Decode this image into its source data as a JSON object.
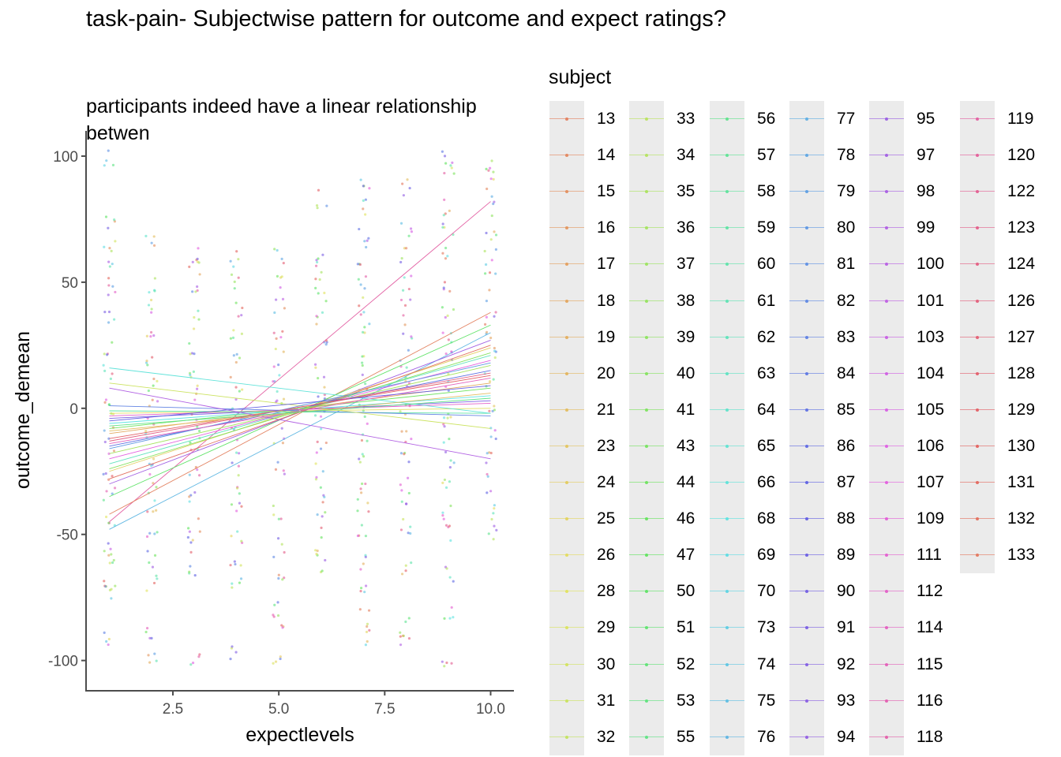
{
  "chart_data": {
    "type": "scatter",
    "title": "task-pain- Subjectwise pattern for outcome and expect ratings?",
    "subtitle": "participants indeed have a linear relationship betwen",
    "xlabel": "expectlevels",
    "ylabel": "outcome_demean",
    "xlim": [
      0.45,
      10.55
    ],
    "ylim": [
      -112,
      110
    ],
    "x_ticks": [
      2.5,
      5.0,
      7.5,
      10.0
    ],
    "x_tick_labels": [
      "2.5",
      "5.0",
      "7.5",
      "10.0"
    ],
    "y_ticks": [
      100,
      50,
      0,
      -50,
      -100
    ],
    "y_tick_labels": [
      "100",
      "50",
      "0",
      "-50",
      "-100"
    ],
    "grid": false,
    "legend_title": "subject",
    "legend_position": "right",
    "overlay": "per-subject linear fit lines over jittered points",
    "subjects": [
      "13",
      "14",
      "15",
      "16",
      "17",
      "18",
      "19",
      "20",
      "21",
      "23",
      "24",
      "25",
      "26",
      "28",
      "29",
      "30",
      "31",
      "32",
      "33",
      "34",
      "35",
      "36",
      "37",
      "38",
      "39",
      "40",
      "41",
      "43",
      "44",
      "46",
      "47",
      "50",
      "51",
      "52",
      "53",
      "55",
      "56",
      "57",
      "58",
      "59",
      "60",
      "61",
      "62",
      "63",
      "64",
      "65",
      "66",
      "68",
      "69",
      "70",
      "73",
      "74",
      "75",
      "76",
      "77",
      "78",
      "79",
      "80",
      "81",
      "82",
      "83",
      "84",
      "85",
      "86",
      "87",
      "88",
      "89",
      "90",
      "91",
      "92",
      "93",
      "94",
      "95",
      "97",
      "98",
      "99",
      "100",
      "101",
      "103",
      "104",
      "105",
      "106",
      "107",
      "109",
      "111",
      "112",
      "114",
      "115",
      "116",
      "118",
      "119",
      "120",
      "122",
      "123",
      "124",
      "126",
      "127",
      "128",
      "129",
      "130",
      "131",
      "132",
      "133"
    ],
    "x_levels": [
      1,
      2,
      3,
      4,
      5,
      6,
      7,
      8,
      9,
      10
    ],
    "y_points_by_level": [
      [
        -92,
        -72,
        -70,
        -60,
        -55,
        -45,
        -35,
        -25,
        -15,
        -5,
        5,
        15,
        25,
        35,
        45,
        55,
        65,
        74,
        99
      ],
      [
        -97,
        -89,
        -70,
        -60,
        -50,
        -40,
        -30,
        -20,
        -10,
        0,
        10,
        20,
        30,
        40,
        50,
        66
      ],
      [
        -100,
        -65,
        -55,
        -45,
        -35,
        -25,
        -15,
        -5,
        5,
        15,
        25,
        35,
        45,
        55,
        61
      ],
      [
        -97,
        -68,
        -60,
        -50,
        -40,
        -30,
        -20,
        -10,
        0,
        10,
        20,
        30,
        40,
        50,
        59
      ],
      [
        -102,
        -86,
        -80,
        -70,
        -55,
        -40,
        -25,
        -10,
        0,
        10,
        20,
        30,
        40,
        50,
        60
      ],
      [
        -61,
        -55,
        -45,
        -35,
        -25,
        -15,
        -5,
        5,
        15,
        25,
        35,
        45,
        55,
        60,
        83
      ],
      [
        -90,
        -83,
        -70,
        -60,
        -50,
        -40,
        -30,
        -20,
        -10,
        0,
        10,
        20,
        30,
        40,
        50,
        60,
        70,
        80,
        91
      ],
      [
        -90,
        -87,
        -65,
        -50,
        -40,
        -30,
        -20,
        -10,
        0,
        10,
        20,
        30,
        40,
        50,
        60,
        70,
        88
      ],
      [
        -99,
        -80,
        -65,
        -50,
        -40,
        -30,
        -20,
        -10,
        0,
        10,
        20,
        30,
        40,
        50,
        60,
        70,
        79,
        97,
        101
      ],
      [
        -50,
        -40,
        -30,
        -20,
        -10,
        0,
        10,
        20,
        30,
        40,
        50,
        60,
        70,
        80,
        91,
        95
      ]
    ],
    "fit_lines": [
      {
        "subject": "119",
        "x": [
          1,
          10
        ],
        "y": [
          -45,
          82
        ]
      },
      {
        "subject": "13",
        "x": [
          1,
          10
        ],
        "y": [
          -42,
          38
        ]
      },
      {
        "subject": "76",
        "x": [
          1,
          10
        ],
        "y": [
          -48,
          30
        ]
      },
      {
        "subject": "50",
        "x": [
          1,
          10
        ],
        "y": [
          -35,
          33
        ]
      },
      {
        "subject": "97",
        "x": [
          1,
          10
        ],
        "y": [
          -30,
          27
        ]
      },
      {
        "subject": "24",
        "x": [
          1,
          10
        ],
        "y": [
          -25,
          24
        ]
      },
      {
        "subject": "62",
        "x": [
          1,
          10
        ],
        "y": [
          -22,
          21
        ]
      },
      {
        "subject": "107",
        "x": [
          1,
          10
        ],
        "y": [
          -20,
          19
        ]
      },
      {
        "subject": "36",
        "x": [
          1,
          10
        ],
        "y": [
          -18,
          17
        ]
      },
      {
        "subject": "85",
        "x": [
          1,
          10
        ],
        "y": [
          -15,
          15
        ]
      },
      {
        "subject": "129",
        "x": [
          1,
          10
        ],
        "y": [
          -12,
          13
        ]
      },
      {
        "subject": "18",
        "x": [
          1,
          10
        ],
        "y": [
          -10,
          10
        ]
      },
      {
        "subject": "44",
        "x": [
          1,
          10
        ],
        "y": [
          -8,
          8
        ]
      },
      {
        "subject": "68",
        "x": [
          1,
          10
        ],
        "y": [
          -6,
          5
        ]
      },
      {
        "subject": "91",
        "x": [
          1,
          10
        ],
        "y": [
          -4,
          3
        ]
      },
      {
        "subject": "112",
        "x": [
          1,
          10
        ],
        "y": [
          -3,
          2
        ]
      },
      {
        "subject": "26",
        "x": [
          1,
          10
        ],
        "y": [
          -2,
          0
        ]
      },
      {
        "subject": "59",
        "x": [
          1,
          10
        ],
        "y": [
          -1,
          -2
        ]
      },
      {
        "subject": "83",
        "x": [
          1,
          10
        ],
        "y": [
          1,
          -3
        ]
      },
      {
        "subject": "31",
        "x": [
          1,
          10
        ],
        "y": [
          10,
          -8
        ]
      },
      {
        "subject": "66",
        "x": [
          1,
          10
        ],
        "y": [
          16,
          -2
        ]
      },
      {
        "subject": "99",
        "x": [
          1,
          10
        ],
        "y": [
          8,
          -20
        ]
      },
      {
        "subject": "132",
        "x": [
          1,
          10
        ],
        "y": [
          -28,
          25
        ]
      },
      {
        "subject": "40",
        "x": [
          1,
          10
        ],
        "y": [
          -24,
          22
        ]
      },
      {
        "subject": "80",
        "x": [
          1,
          10
        ],
        "y": [
          -16,
          18
        ]
      },
      {
        "subject": "115",
        "x": [
          1,
          10
        ],
        "y": [
          -14,
          12
        ]
      },
      {
        "subject": "21",
        "x": [
          1,
          10
        ],
        "y": [
          -9,
          6
        ]
      },
      {
        "subject": "55",
        "x": [
          1,
          10
        ],
        "y": [
          -7,
          4
        ]
      },
      {
        "subject": "88",
        "x": [
          1,
          10
        ],
        "y": [
          -5,
          9
        ]
      },
      {
        "subject": "124",
        "x": [
          1,
          10
        ],
        "y": [
          -13,
          14
        ]
      }
    ]
  },
  "colors": {
    "background": "#ffffff",
    "axis": "#4d4d4d",
    "legend_key_bg": "#ebebeb",
    "hue_chroma": 100,
    "hue_lightness": 65
  }
}
